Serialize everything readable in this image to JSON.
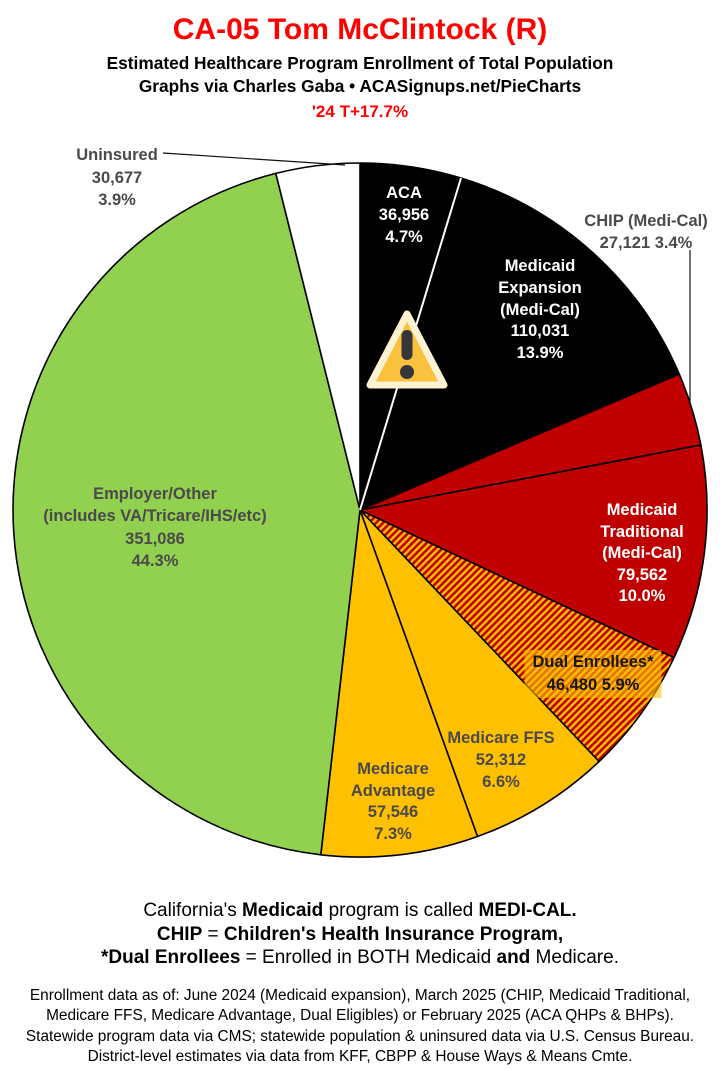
{
  "header": {
    "title": "CA-05 Tom McClintock (R)",
    "subtitle1": "Estimated Healthcare Program Enrollment of Total Population",
    "subtitle2": "Graphs via Charles Gaba   •   ACASignups.net/PieCharts",
    "tagline": "'24 T+17.7%"
  },
  "colors": {
    "accent_red": "#FF0000",
    "pie_black": "#000000",
    "pie_dark_red": "#C00000",
    "pie_gold": "#FFC000",
    "pie_green": "#92D050",
    "pie_white": "#FFFFFF",
    "label_gray": "#4A4A4A"
  },
  "chart_data": {
    "type": "pie",
    "title": "Estimated Healthcare Program Enrollment of Total Population — CA-05 Tom McClintock (R)",
    "start_angle_deg": 0,
    "direction": "clockwise",
    "total_pct": 100.0,
    "slices": [
      {
        "name": "ACA",
        "value": 36956,
        "pct": 4.7,
        "fill": "#000000"
      },
      {
        "name": "Medicaid Expansion (Medi-Cal)",
        "value": 110031,
        "pct": 13.9,
        "fill": "#000000"
      },
      {
        "name": "CHIP (Medi-Cal)",
        "value": 27121,
        "pct": 3.4,
        "fill": "#C00000"
      },
      {
        "name": "Medicaid Traditional (Medi-Cal)",
        "value": 79562,
        "pct": 10.0,
        "fill": "#C00000"
      },
      {
        "name": "Dual Enrollees",
        "value": 46480,
        "pct": 5.9,
        "fill": "hatch:red-gold"
      },
      {
        "name": "Medicare FFS",
        "value": 52312,
        "pct": 6.6,
        "fill": "#FFC000"
      },
      {
        "name": "Medicare Advantage",
        "value": 57546,
        "pct": 7.3,
        "fill": "#FFC000"
      },
      {
        "name": "Employer/Other (includes VA/Tricare/IHS/etc)",
        "value": 351086,
        "pct": 44.3,
        "fill": "#92D050"
      },
      {
        "name": "Uninsured",
        "value": 30677,
        "pct": 3.9,
        "fill": "#FFFFFF"
      }
    ]
  },
  "slice_labels": {
    "aca": [
      "ACA",
      "36,956",
      "4.7%"
    ],
    "medexp": [
      "Medicaid",
      "Expansion",
      "(Medi-Cal)",
      "110,031",
      "13.9%"
    ],
    "chip": [
      "CHIP (Medi-Cal)",
      "27,121 3.4%"
    ],
    "medtrad": [
      "Medicaid",
      "Traditional",
      "(Medi-Cal)",
      "79,562",
      "10.0%"
    ],
    "dual": [
      "Dual Enrollees*",
      "46,480 5.9%"
    ],
    "ffs": [
      "Medicare FFS",
      "52,312",
      "6.6%"
    ],
    "madv": [
      "Medicare",
      "Advantage",
      "57,546",
      "7.3%"
    ],
    "employer": [
      "Employer/Other",
      "(includes VA/Tricare/IHS/etc)",
      "351,086",
      "44.3%"
    ],
    "uninsured": [
      "Uninsured",
      "30,677",
      "3.9%"
    ]
  },
  "notes": {
    "line1": {
      "pre": "California's ",
      "b1": "Medicaid",
      "mid": " program is called ",
      "b2": "MEDI-CAL."
    },
    "line2": {
      "b1": "CHIP",
      "mid": " = ",
      "b2": "Children's Health Insurance Program,"
    },
    "line3": {
      "b1": "*Dual Enrollees",
      "mid": " = Enrolled in BOTH Medicaid ",
      "b2": "and",
      "post": " Medicare."
    }
  },
  "footer": {
    "line1": "Enrollment data as of: June 2024 (Medicaid expansion), March 2025 (CHIP, Medicaid Traditional,",
    "line2": "Medicare FFS, Medicare Advantage, Dual Eligibles) or February 2025 (ACA QHPs & BHPs).",
    "line3": "Statewide program data via CMS; statewide population & uninsured data via U.S. Census Bureau.",
    "line4": "District-level estimates via data from KFF, CBPP & House Ways & Means Cmte."
  }
}
